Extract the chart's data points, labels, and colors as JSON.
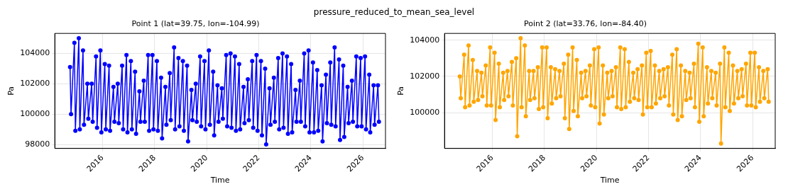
{
  "chart_data": [
    {
      "type": "line",
      "title": "Point 1 (lat=39.75, lon=-104.99)",
      "xlabel": "Time",
      "ylabel": "Pa",
      "annotations": [
        "pressure_reduced_to_mean_sea_level"
      ],
      "xlim": [
        "2014-03-01",
        "2026-11-15"
      ],
      "xticks": [
        "2016",
        "2018",
        "2020",
        "2022",
        "2024",
        "2026"
      ],
      "ylim": [
        97740,
        105320
      ],
      "yticks": [
        98000,
        100000,
        102000,
        104000
      ],
      "grid": true,
      "marker": "circle",
      "series": [
        {
          "color": "#0000ff",
          "x": [
            "2014-10-01",
            "2014-10-15",
            "2014-12-01",
            "2014-12-15",
            "2015-02-01",
            "2015-02-15",
            "2015-04-01",
            "2015-04-15",
            "2015-06-01",
            "2015-06-15",
            "2015-08-01",
            "2015-08-15",
            "2015-10-01",
            "2015-10-15",
            "2015-12-01",
            "2015-12-15",
            "2016-02-01",
            "2016-02-15",
            "2016-04-01",
            "2016-04-15",
            "2016-06-01",
            "2016-06-15",
            "2016-08-01",
            "2016-08-15",
            "2016-10-01",
            "2016-10-15",
            "2016-12-01",
            "2016-12-15",
            "2017-02-01",
            "2017-02-15",
            "2017-04-01",
            "2017-04-15",
            "2017-06-01",
            "2017-06-15",
            "2017-08-01",
            "2017-08-15",
            "2017-10-01",
            "2017-10-15",
            "2017-12-01",
            "2017-12-15",
            "2018-02-01",
            "2018-02-15",
            "2018-04-01",
            "2018-04-15",
            "2018-06-01",
            "2018-06-15",
            "2018-08-01",
            "2018-08-15",
            "2018-10-01",
            "2018-10-15",
            "2018-12-01",
            "2018-12-15",
            "2019-02-01",
            "2019-02-15",
            "2019-04-01",
            "2019-04-15",
            "2019-06-01",
            "2019-06-15",
            "2019-08-01",
            "2019-08-15",
            "2019-10-01",
            "2019-10-15",
            "2019-12-01",
            "2019-12-15",
            "2020-02-01",
            "2020-02-15",
            "2020-04-01",
            "2020-04-15",
            "2020-06-01",
            "2020-06-15",
            "2020-08-01",
            "2020-08-15",
            "2020-10-01",
            "2020-10-15",
            "2020-12-01",
            "2020-12-15",
            "2021-02-01",
            "2021-02-15",
            "2021-04-01",
            "2021-04-15",
            "2021-06-01",
            "2021-06-15",
            "2021-08-01",
            "2021-08-15",
            "2021-10-01",
            "2021-10-15",
            "2021-12-01",
            "2021-12-15",
            "2022-02-01",
            "2022-02-15",
            "2022-04-01",
            "2022-04-15",
            "2022-06-01",
            "2022-06-15",
            "2022-08-01",
            "2022-08-15",
            "2022-10-01",
            "2022-10-15",
            "2022-12-01",
            "2022-12-15",
            "2023-02-01",
            "2023-02-15",
            "2023-04-01",
            "2023-04-15",
            "2023-06-01",
            "2023-06-15",
            "2023-08-01",
            "2023-08-15",
            "2023-10-01",
            "2023-10-15",
            "2023-12-01",
            "2023-12-15",
            "2024-02-01",
            "2024-02-15",
            "2024-04-01",
            "2024-04-15",
            "2024-06-01",
            "2024-06-15",
            "2024-08-01",
            "2024-08-15",
            "2024-10-01",
            "2024-10-15",
            "2024-12-01",
            "2024-12-15",
            "2025-02-01",
            "2025-02-15",
            "2025-04-01",
            "2025-04-15",
            "2025-06-01",
            "2025-06-15",
            "2025-08-01",
            "2025-08-15",
            "2025-10-01",
            "2025-10-15",
            "2025-12-01",
            "2025-12-15",
            "2026-02-01",
            "2026-02-15",
            "2026-04-01",
            "2026-04-15",
            "2026-06-01",
            "2026-06-15",
            "2026-08-01",
            "2026-08-15"
          ],
          "values": [
            103100,
            100000,
            104700,
            98900,
            105000,
            99000,
            104200,
            99300,
            102000,
            99700,
            102000,
            99500,
            103800,
            99100,
            104200,
            98800,
            103300,
            99000,
            103200,
            98900,
            101800,
            99500,
            102000,
            99400,
            103200,
            99000,
            103900,
            98800,
            103500,
            99000,
            102800,
            98700,
            101500,
            99500,
            102200,
            99500,
            103900,
            98900,
            103900,
            99000,
            103500,
            98900,
            102400,
            98400,
            101800,
            99300,
            102700,
            99600,
            104400,
            99000,
            103700,
            99200,
            103500,
            98900,
            103200,
            98200,
            101600,
            99600,
            102000,
            99500,
            103800,
            99200,
            103500,
            99000,
            104200,
            99300,
            102800,
            98600,
            101900,
            99500,
            101700,
            99700,
            103900,
            99200,
            104000,
            99100,
            103800,
            98900,
            103300,
            99000,
            101800,
            99400,
            102300,
            99600,
            103500,
            99100,
            103900,
            98900,
            103500,
            98600,
            103000,
            98000,
            101700,
            99300,
            102400,
            99500,
            103700,
            99000,
            104000,
            99100,
            103800,
            98700,
            103300,
            98800,
            101600,
            99500,
            102200,
            99500,
            104000,
            99200,
            104200,
            98800,
            103400,
            98800,
            102900,
            98900,
            101900,
            98200,
            102600,
            99400,
            103400,
            99300,
            104400,
            99200,
            103600,
            98300,
            103200,
            98500,
            101800,
            99400,
            102200,
            99500,
            103800,
            99200,
            103700,
            99200,
            103800,
            99000,
            102600,
            98800,
            101900,
            99300,
            101900,
            99500
          ]
        }
      ]
    },
    {
      "type": "line",
      "title": "Point 2 (lat=33.76, lon=-84.40)",
      "xlabel": "Time",
      "ylabel": "Pa",
      "xlim": [
        "2014-03-01",
        "2026-11-15"
      ],
      "xticks": [
        "2016",
        "2018",
        "2020",
        "2022",
        "2024",
        "2026"
      ],
      "ylim": [
        98030,
        104370
      ],
      "yticks": [
        100000,
        102000,
        104000
      ],
      "grid": true,
      "marker": "circle",
      "series": [
        {
          "color": "#ffa500",
          "x": [
            "2014-10-01",
            "2014-10-15",
            "2014-12-01",
            "2014-12-15",
            "2015-02-01",
            "2015-02-15",
            "2015-04-01",
            "2015-04-15",
            "2015-06-01",
            "2015-06-15",
            "2015-08-01",
            "2015-08-15",
            "2015-10-01",
            "2015-10-15",
            "2015-12-01",
            "2015-12-15",
            "2016-02-01",
            "2016-02-15",
            "2016-04-01",
            "2016-04-15",
            "2016-06-01",
            "2016-06-15",
            "2016-08-01",
            "2016-08-15",
            "2016-10-01",
            "2016-10-15",
            "2016-12-01",
            "2016-12-15",
            "2017-02-01",
            "2017-02-15",
            "2017-04-01",
            "2017-04-15",
            "2017-06-01",
            "2017-06-15",
            "2017-08-01",
            "2017-08-15",
            "2017-10-01",
            "2017-10-15",
            "2017-12-01",
            "2017-12-15",
            "2018-02-01",
            "2018-02-15",
            "2018-04-01",
            "2018-04-15",
            "2018-06-01",
            "2018-06-15",
            "2018-08-01",
            "2018-08-15",
            "2018-10-01",
            "2018-10-15",
            "2018-12-01",
            "2018-12-15",
            "2019-02-01",
            "2019-02-15",
            "2019-04-01",
            "2019-04-15",
            "2019-06-01",
            "2019-06-15",
            "2019-08-01",
            "2019-08-15",
            "2019-10-01",
            "2019-10-15",
            "2019-12-01",
            "2019-12-15",
            "2020-02-01",
            "2020-02-15",
            "2020-04-01",
            "2020-04-15",
            "2020-06-01",
            "2020-06-15",
            "2020-08-01",
            "2020-08-15",
            "2020-10-01",
            "2020-10-15",
            "2020-12-01",
            "2020-12-15",
            "2021-02-01",
            "2021-02-15",
            "2021-04-01",
            "2021-04-15",
            "2021-06-01",
            "2021-06-15",
            "2021-08-01",
            "2021-08-15",
            "2021-10-01",
            "2021-10-15",
            "2021-12-01",
            "2021-12-15",
            "2022-02-01",
            "2022-02-15",
            "2022-04-01",
            "2022-04-15",
            "2022-06-01",
            "2022-06-15",
            "2022-08-01",
            "2022-08-15",
            "2022-10-01",
            "2022-10-15",
            "2022-12-01",
            "2022-12-15",
            "2023-02-01",
            "2023-02-15",
            "2023-04-01",
            "2023-04-15",
            "2023-06-01",
            "2023-06-15",
            "2023-08-01",
            "2023-08-15",
            "2023-10-01",
            "2023-10-15",
            "2023-12-01",
            "2023-12-15",
            "2024-02-01",
            "2024-02-15",
            "2024-04-01",
            "2024-04-15",
            "2024-06-01",
            "2024-06-15",
            "2024-08-01",
            "2024-08-15",
            "2024-10-01",
            "2024-10-15",
            "2024-12-01",
            "2024-12-15",
            "2025-02-01",
            "2025-02-15",
            "2025-04-01",
            "2025-04-15",
            "2025-06-01",
            "2025-06-15",
            "2025-08-01",
            "2025-08-15",
            "2025-10-01",
            "2025-10-15",
            "2025-12-01",
            "2025-12-15",
            "2026-02-01",
            "2026-02-15",
            "2026-04-01",
            "2026-04-15",
            "2026-06-01",
            "2026-06-15",
            "2026-08-01",
            "2026-08-15"
          ],
          "values": [
            102000,
            100800,
            103200,
            100300,
            103700,
            100400,
            102900,
            100600,
            102300,
            100700,
            102200,
            100900,
            102600,
            100400,
            103600,
            100400,
            103300,
            99600,
            102700,
            100300,
            102200,
            100700,
            102300,
            100900,
            102800,
            100400,
            103000,
            98700,
            104100,
            100300,
            103700,
            99800,
            102300,
            100700,
            102300,
            100800,
            102500,
            100200,
            103600,
            100300,
            103600,
            99700,
            102500,
            100500,
            102400,
            100800,
            102300,
            100900,
            102700,
            99700,
            103200,
            99100,
            103600,
            100100,
            102900,
            99800,
            102200,
            100800,
            102300,
            100900,
            102600,
            100400,
            103500,
            100300,
            103600,
            99400,
            102600,
            99900,
            102200,
            100800,
            102300,
            100900,
            102500,
            100300,
            103600,
            100200,
            103500,
            100300,
            102800,
            100600,
            102200,
            100800,
            102400,
            100700,
            102600,
            99900,
            103300,
            100300,
            103400,
            100300,
            102600,
            100500,
            102300,
            100800,
            102400,
            100900,
            102500,
            100400,
            103200,
            99900,
            103500,
            99600,
            102600,
            99800,
            102300,
            100700,
            102200,
            100800,
            102700,
            100300,
            103800,
            99500,
            103600,
            99800,
            102500,
            100500,
            102300,
            100800,
            102200,
            100400,
            102700,
            98300,
            103600,
            100300,
            103300,
            100100,
            102600,
            100500,
            102300,
            100800,
            102400,
            100900,
            102700,
            100400,
            103300,
            100400,
            103300,
            100300,
            102500,
            100600,
            102300,
            100800,
            102400,
            100600
          ]
        }
      ]
    }
  ]
}
